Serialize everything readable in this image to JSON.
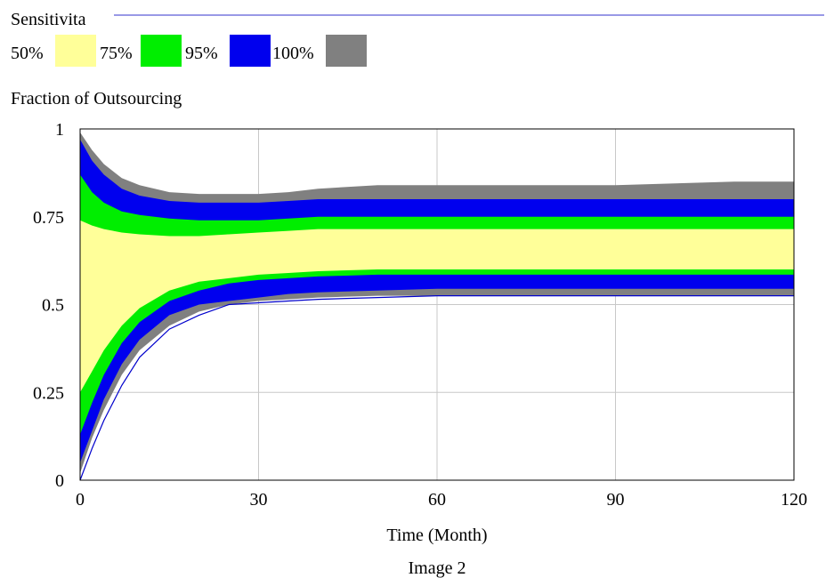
{
  "chart_data": {
    "type": "area",
    "legend_title": "Sensitivita",
    "legend_placement": "top-left",
    "title": "Fraction of Outsourcing",
    "xlabel": "Time (Month)",
    "caption": "Image 2",
    "xlim": [
      0,
      120
    ],
    "ylim": [
      0,
      1
    ],
    "x_ticks": [
      "0",
      "30",
      "60",
      "90",
      "120"
    ],
    "y_ticks": [
      "0",
      "0.25",
      "0.5",
      "0.75",
      "1"
    ],
    "grid": true,
    "x": [
      0,
      2,
      4,
      7,
      10,
      15,
      20,
      25,
      30,
      35,
      40,
      50,
      60,
      70,
      80,
      90,
      100,
      110,
      120
    ],
    "series": [
      {
        "name": "100%",
        "color": "#808080",
        "lower": [
          0.02,
          0.12,
          0.2,
          0.3,
          0.37,
          0.44,
          0.48,
          0.5,
          0.51,
          0.515,
          0.52,
          0.525,
          0.525,
          0.525,
          0.525,
          0.525,
          0.525,
          0.525,
          0.525
        ],
        "upper": [
          0.99,
          0.94,
          0.9,
          0.86,
          0.84,
          0.82,
          0.815,
          0.815,
          0.815,
          0.82,
          0.83,
          0.84,
          0.84,
          0.84,
          0.84,
          0.84,
          0.845,
          0.85,
          0.85
        ]
      },
      {
        "name": "95%",
        "color": "#0000ee",
        "lower": [
          0.05,
          0.14,
          0.23,
          0.33,
          0.4,
          0.47,
          0.5,
          0.51,
          0.52,
          0.53,
          0.535,
          0.54,
          0.545,
          0.545,
          0.545,
          0.545,
          0.545,
          0.545,
          0.545
        ],
        "upper": [
          0.97,
          0.91,
          0.87,
          0.83,
          0.81,
          0.795,
          0.79,
          0.79,
          0.79,
          0.795,
          0.8,
          0.8,
          0.8,
          0.8,
          0.8,
          0.8,
          0.8,
          0.8,
          0.8
        ]
      },
      {
        "name": "75%",
        "color": "#00ee00",
        "lower": [
          0.13,
          0.22,
          0.3,
          0.39,
          0.45,
          0.51,
          0.54,
          0.56,
          0.57,
          0.575,
          0.58,
          0.585,
          0.585,
          0.585,
          0.585,
          0.585,
          0.585,
          0.585,
          0.585
        ],
        "upper": [
          0.87,
          0.82,
          0.79,
          0.765,
          0.755,
          0.745,
          0.74,
          0.74,
          0.74,
          0.745,
          0.75,
          0.75,
          0.75,
          0.75,
          0.75,
          0.75,
          0.75,
          0.75,
          0.75
        ]
      },
      {
        "name": "50%",
        "color": "#ffff99",
        "lower": [
          0.25,
          0.31,
          0.37,
          0.44,
          0.49,
          0.54,
          0.565,
          0.575,
          0.585,
          0.59,
          0.595,
          0.6,
          0.6,
          0.6,
          0.6,
          0.6,
          0.6,
          0.6,
          0.6
        ],
        "upper": [
          0.74,
          0.725,
          0.715,
          0.705,
          0.7,
          0.695,
          0.695,
          0.7,
          0.705,
          0.71,
          0.715,
          0.715,
          0.715,
          0.715,
          0.715,
          0.715,
          0.715,
          0.715,
          0.715
        ]
      }
    ],
    "baseline_run": {
      "color": "#0000cc",
      "values": [
        0.0,
        0.09,
        0.17,
        0.27,
        0.35,
        0.43,
        0.47,
        0.5,
        0.505,
        0.51,
        0.515,
        0.52,
        0.525,
        0.525,
        0.525,
        0.525,
        0.525,
        0.525,
        0.525
      ]
    }
  }
}
